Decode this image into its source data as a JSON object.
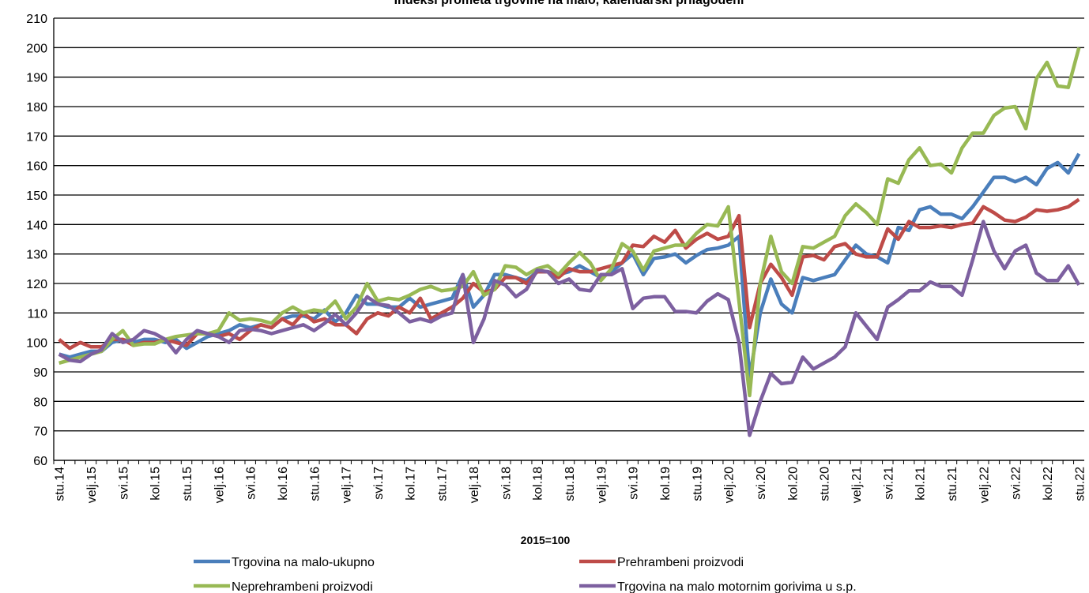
{
  "chart_data": {
    "type": "line",
    "title": "Indeksi prometa trgovine na malo, kalendarski prilagođeni",
    "x_label": "2015=100",
    "categories": [
      "stu.14",
      null,
      null,
      "velj.15",
      null,
      null,
      "svi.15",
      null,
      null,
      "kol.15",
      null,
      null,
      "stu.15",
      null,
      null,
      "velj.16",
      null,
      null,
      "svi.16",
      null,
      null,
      "kol.16",
      null,
      null,
      "stu.16",
      null,
      null,
      "velj.17",
      null,
      null,
      "svi.17",
      null,
      null,
      "kol.17",
      null,
      null,
      "stu.17",
      null,
      null,
      "velj.18",
      null,
      null,
      "svi.18",
      null,
      null,
      "kol.18",
      null,
      null,
      "stu.18",
      null,
      null,
      "velj.19",
      null,
      null,
      "svi.19",
      null,
      null,
      "kol.19",
      null,
      null,
      "stu.19",
      null,
      null,
      "velj.20",
      null,
      null,
      "svi.20",
      null,
      null,
      "kol.20",
      null,
      null,
      "stu.20",
      null,
      null,
      "velj.21",
      null,
      null,
      "svi.21",
      null,
      null,
      "kol.21",
      null,
      null,
      "stu.21",
      null,
      null,
      "velj.22",
      null,
      null,
      "svi.22",
      null,
      null,
      "kol.22",
      null,
      null,
      "stu.22"
    ],
    "series": [
      {
        "name": "Trgovina na malo-ukupno",
        "color": "#4a7ebb",
        "values": [
          96,
          95,
          96,
          97,
          97,
          100,
          101,
          100,
          101,
          101,
          100,
          101,
          98,
          100,
          102,
          103,
          104,
          106,
          105,
          106,
          105,
          108,
          109,
          109,
          108,
          111,
          107,
          110,
          116,
          113,
          113,
          112,
          112,
          115,
          112,
          113,
          114,
          115,
          123,
          112,
          116,
          123,
          123,
          122,
          121,
          124,
          124,
          123,
          124,
          126,
          124,
          122,
          124,
          127,
          130,
          123,
          128.5,
          129,
          130,
          127,
          129.5,
          131.5,
          132,
          133,
          136,
          88,
          110,
          121.5,
          113,
          110,
          122,
          121,
          122,
          123,
          128,
          133,
          130,
          129,
          127,
          139,
          138,
          145,
          146,
          143.5,
          143.5,
          142,
          146,
          151,
          156,
          156,
          154.5,
          156,
          153.5,
          159,
          161,
          157.5,
          164
        ]
      },
      {
        "name": "Prehrambeni proizvodi",
        "color": "#be4b48",
        "values": [
          101,
          98,
          100,
          98.5,
          98.5,
          101,
          101,
          99,
          100,
          100,
          101,
          100,
          99,
          103,
          103,
          102,
          103,
          101,
          104,
          106,
          105,
          108,
          106,
          110,
          107,
          108,
          106,
          106,
          103,
          108,
          110,
          109,
          112,
          110,
          115,
          108,
          110,
          112,
          115,
          120,
          117,
          118,
          122,
          122,
          120,
          124,
          124,
          122,
          125,
          124,
          124,
          125,
          126,
          127,
          133,
          132.5,
          136,
          134,
          138,
          132,
          135,
          137,
          135,
          136,
          143,
          105,
          120,
          126.5,
          122,
          116,
          129,
          129.5,
          128,
          132.5,
          133.5,
          130,
          129,
          129,
          138.5,
          135,
          141,
          139,
          139,
          139.5,
          139,
          140,
          140.5,
          146,
          144,
          141.5,
          141,
          142.5,
          145,
          144.5,
          145,
          146,
          148.5
        ]
      },
      {
        "name": "Neprehrambeni proizvodi",
        "color": "#98b954",
        "values": [
          93,
          94,
          95,
          96,
          97,
          101,
          104,
          99,
          99.5,
          99.5,
          101,
          102,
          102.5,
          103,
          103,
          104,
          110,
          107.5,
          108,
          107.5,
          106.5,
          110,
          112,
          110,
          111,
          110.5,
          114,
          108,
          112,
          120,
          114,
          115,
          114.5,
          116,
          118,
          119,
          117.5,
          118,
          119,
          124,
          116,
          118,
          126,
          125.5,
          123,
          125,
          126,
          123,
          127,
          130.5,
          127,
          121,
          125,
          133.5,
          131,
          124.5,
          131,
          132,
          133,
          133,
          137,
          140,
          139.5,
          146,
          114,
          82,
          120,
          136,
          124,
          120,
          132.5,
          132,
          134,
          136,
          143,
          147,
          144,
          140,
          155.5,
          154,
          162,
          166,
          160,
          160.5,
          157.5,
          166,
          171,
          171,
          177,
          179.5,
          180,
          172.5,
          189.5,
          195,
          187,
          186.5,
          200
        ]
      },
      {
        "name": "Trgovina na malo motornim gorivima u s.p.",
        "color": "#7d60a0",
        "values": [
          96,
          94,
          93.5,
          96,
          97.5,
          103,
          100,
          101,
          104,
          103,
          101,
          96.5,
          101,
          104,
          103,
          102,
          100,
          104,
          104.5,
          104,
          103,
          104,
          105,
          106,
          104,
          106.5,
          109.5,
          106,
          110,
          115.5,
          113,
          112.5,
          110,
          107,
          108,
          107,
          109,
          110,
          123,
          100,
          108,
          121,
          119.5,
          115.5,
          118,
          124.5,
          124,
          120,
          121.5,
          118,
          117.5,
          123,
          123,
          125,
          111.5,
          115,
          115.5,
          115.5,
          110.5,
          110.5,
          110,
          114,
          116.5,
          114.5,
          100,
          68.5,
          80,
          89.5,
          86,
          86.5,
          95,
          91,
          93,
          95,
          98.5,
          110,
          105.5,
          101,
          112,
          114.5,
          117.5,
          117.5,
          120.5,
          119,
          119,
          116,
          128,
          141,
          131,
          125,
          131,
          133,
          123.5,
          121,
          121,
          126,
          119.5
        ]
      }
    ],
    "ylim": [
      60,
      210
    ],
    "yticks": [
      60,
      70,
      80,
      90,
      100,
      110,
      120,
      130,
      140,
      150,
      160,
      170,
      180,
      190,
      200,
      210
    ],
    "grid": true,
    "legend": "bottom"
  }
}
